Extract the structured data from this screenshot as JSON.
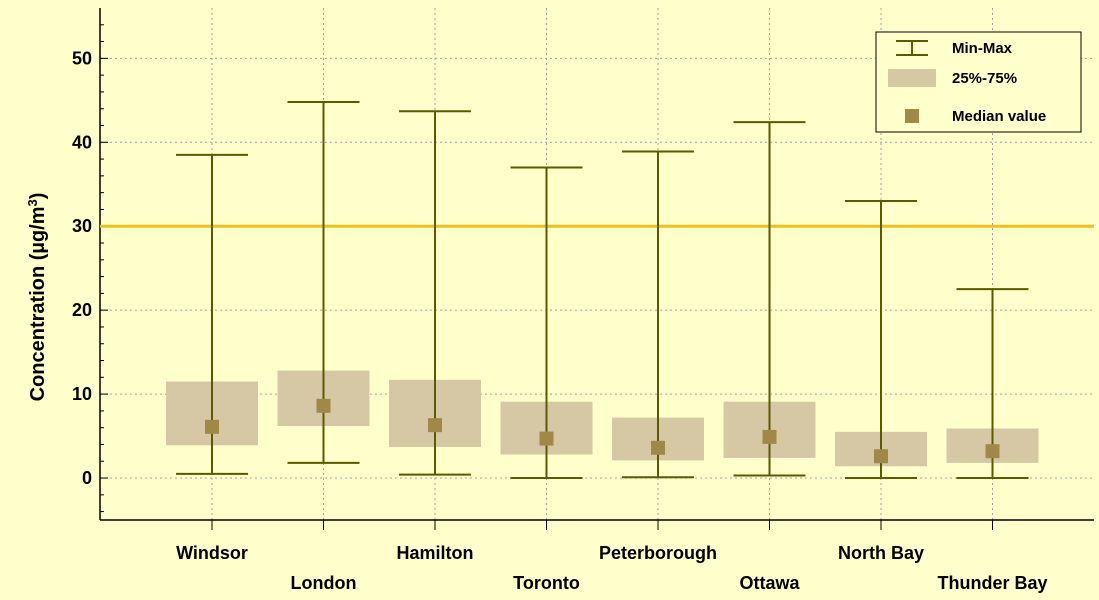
{
  "chart_data": {
    "type": "boxplot",
    "ylabel": "Concentration (µg/m³)",
    "ylabel_parts": {
      "main": "Concentration (µg/m",
      "sup": "3",
      "close": ")"
    },
    "ylim": [
      -5,
      56
    ],
    "yticks": [
      0,
      10,
      20,
      30,
      40,
      50
    ],
    "grid": true,
    "reference_line": {
      "y": 30,
      "color": "#f0c020"
    },
    "legend": {
      "placement": "top-right",
      "entries": [
        {
          "key": "minmax",
          "label": "Min-Max"
        },
        {
          "key": "iqr",
          "label": "25%-75%"
        },
        {
          "key": "median",
          "label": "Median value"
        }
      ]
    },
    "colors": {
      "whisker": "#5a5a00",
      "box": "#d6c8a4",
      "median": "#a08848",
      "background": "#ffffcc",
      "grid": "#a0a0a0"
    },
    "categories": [
      "Windsor",
      "London",
      "Hamilton",
      "Toronto",
      "Peterborough",
      "Ottawa",
      "North Bay",
      "Thunder Bay"
    ],
    "series": [
      {
        "category": "Windsor",
        "min": 0.5,
        "q1": 3.9,
        "median": 6.1,
        "q3": 11.5,
        "max": 38.5
      },
      {
        "category": "London",
        "min": 1.8,
        "q1": 6.2,
        "median": 8.6,
        "q3": 12.8,
        "max": 44.8
      },
      {
        "category": "Hamilton",
        "min": 0.4,
        "q1": 3.7,
        "median": 6.3,
        "q3": 11.7,
        "max": 43.7
      },
      {
        "category": "Toronto",
        "min": 0.0,
        "q1": 2.8,
        "median": 4.7,
        "q3": 9.1,
        "max": 37.0
      },
      {
        "category": "Peterborough",
        "min": 0.1,
        "q1": 2.1,
        "median": 3.6,
        "q3": 7.2,
        "max": 38.9
      },
      {
        "category": "Ottawa",
        "min": 0.3,
        "q1": 2.4,
        "median": 4.9,
        "q3": 9.1,
        "max": 42.4
      },
      {
        "category": "North Bay",
        "min": 0.0,
        "q1": 1.4,
        "median": 2.6,
        "q3": 5.5,
        "max": 33.0
      },
      {
        "category": "Thunder Bay",
        "min": 0.0,
        "q1": 1.8,
        "median": 3.2,
        "q3": 5.9,
        "max": 22.5
      }
    ]
  }
}
